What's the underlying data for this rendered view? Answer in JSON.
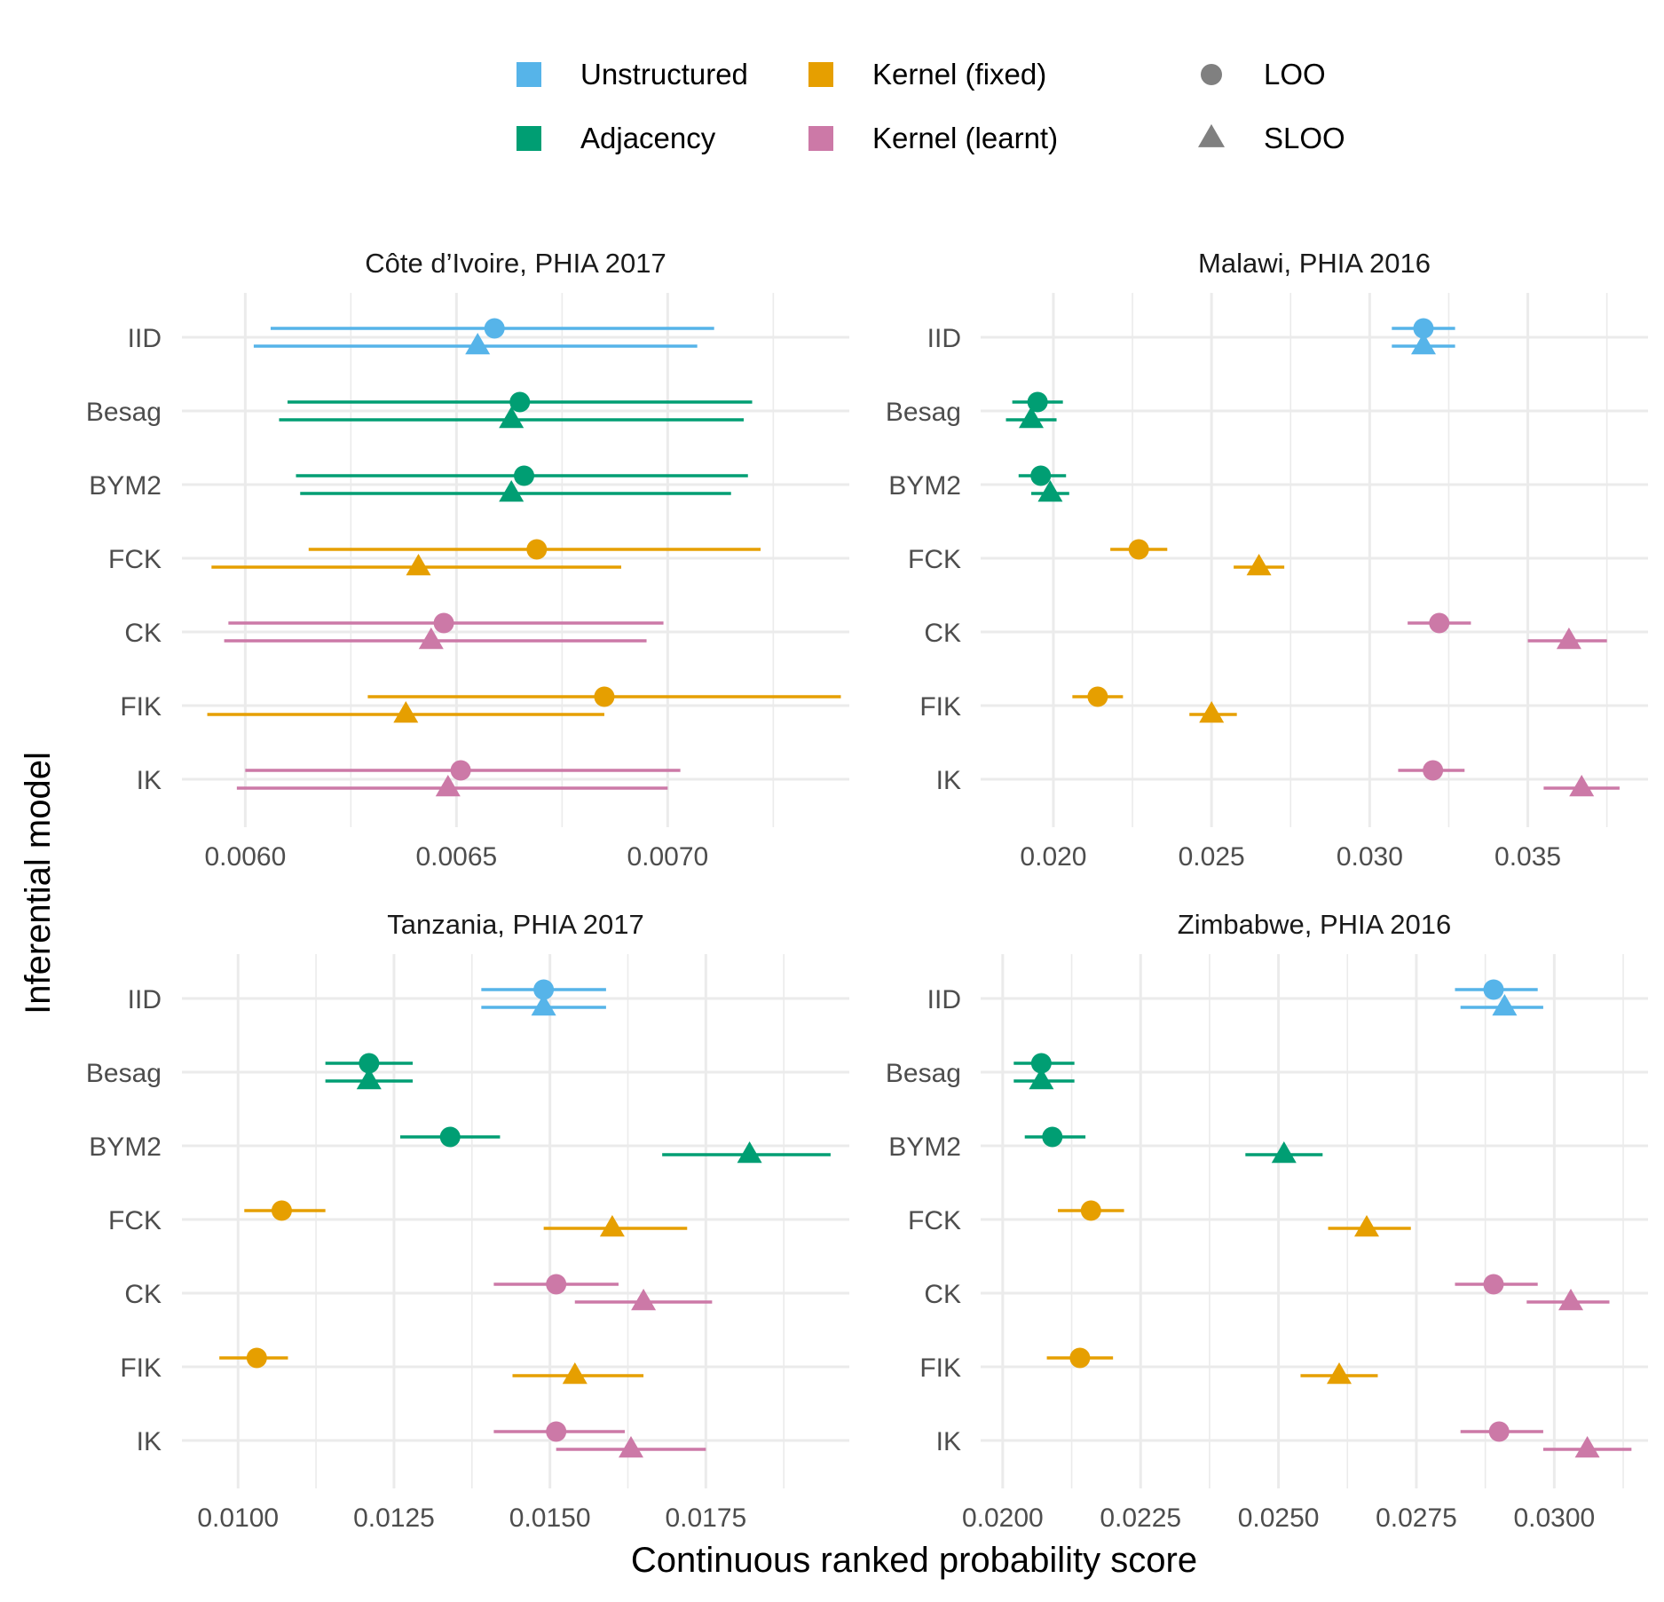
{
  "legend": {
    "colour_items": [
      {
        "label": "Unstructured",
        "color": "#56B4E9"
      },
      {
        "label": "Adjacency",
        "color": "#009E73"
      },
      {
        "label": "Kernel (fixed)",
        "color": "#E69F00"
      },
      {
        "label": "Kernel (learnt)",
        "color": "#CC79A7"
      }
    ],
    "shape_items": [
      {
        "label": "LOO",
        "shape": "circle"
      },
      {
        "label": "SLOO",
        "shape": "triangle"
      }
    ],
    "shape_color": "#808080"
  },
  "xlabel": "Continuous ranked probability score",
  "ylabel": "Inferential model",
  "chart_data": [
    {
      "type": "scatter",
      "title": "Côte d’Ivoire, PHIA 2017",
      "models": [
        "IID",
        "Besag",
        "BYM2",
        "FCK",
        "CK",
        "FIK",
        "IK"
      ],
      "groups": [
        "Unstructured",
        "Adjacency",
        "Adjacency",
        "Kernel (fixed)",
        "Kernel (learnt)",
        "Kernel (fixed)",
        "Kernel (learnt)"
      ],
      "xlim": [
        0.00585,
        0.00743
      ],
      "major_ticks": [
        0.006,
        0.0065,
        0.007
      ],
      "tick_labels": [
        "0.0060",
        "0.0065",
        "0.0070"
      ],
      "minor_ticks": [
        0.00625,
        0.00675,
        0.00725
      ],
      "series": [
        {
          "name": "LOO",
          "values": [
            0.00659,
            0.00665,
            0.00666,
            0.00669,
            0.00647,
            0.00685,
            0.00651
          ],
          "lower": [
            0.00606,
            0.0061,
            0.00612,
            0.00615,
            0.00596,
            0.00629,
            0.006
          ],
          "upper": [
            0.00711,
            0.0072,
            0.00719,
            0.00722,
            0.00699,
            0.00741,
            0.00703
          ]
        },
        {
          "name": "SLOO",
          "values": [
            0.00655,
            0.00663,
            0.00663,
            0.00641,
            0.00644,
            0.00638,
            0.00648
          ],
          "lower": [
            0.00602,
            0.00608,
            0.00613,
            0.00592,
            0.00595,
            0.00591,
            0.00598
          ],
          "upper": [
            0.00707,
            0.00718,
            0.00715,
            0.00689,
            0.00695,
            0.00685,
            0.007
          ]
        }
      ]
    },
    {
      "type": "scatter",
      "title": "Malawi, PHIA 2016",
      "models": [
        "IID",
        "Besag",
        "BYM2",
        "FCK",
        "CK",
        "FIK",
        "IK"
      ],
      "groups": [
        "Unstructured",
        "Adjacency",
        "Adjacency",
        "Kernel (fixed)",
        "Kernel (learnt)",
        "Kernel (fixed)",
        "Kernel (learnt)"
      ],
      "xlim": [
        0.0177,
        0.0388
      ],
      "major_ticks": [
        0.02,
        0.025,
        0.03,
        0.035
      ],
      "tick_labels": [
        "0.020",
        "0.025",
        "0.030",
        "0.035"
      ],
      "minor_ticks": [
        0.0225,
        0.0275,
        0.0325,
        0.0375
      ],
      "series": [
        {
          "name": "LOO",
          "values": [
            0.0317,
            0.0195,
            0.0196,
            0.0227,
            0.0322,
            0.0214,
            0.032
          ],
          "lower": [
            0.0307,
            0.0187,
            0.0189,
            0.0218,
            0.0312,
            0.0206,
            0.0309
          ],
          "upper": [
            0.0327,
            0.0203,
            0.0204,
            0.0236,
            0.0332,
            0.0222,
            0.033
          ]
        },
        {
          "name": "SLOO",
          "values": [
            0.0317,
            0.0193,
            0.0199,
            0.0265,
            0.0363,
            0.025,
            0.0367
          ],
          "lower": [
            0.0307,
            0.0185,
            0.0193,
            0.0257,
            0.035,
            0.0243,
            0.0355
          ],
          "upper": [
            0.0327,
            0.0201,
            0.0205,
            0.0273,
            0.0375,
            0.0258,
            0.0379
          ]
        }
      ]
    },
    {
      "type": "scatter",
      "title": "Tanzania, PHIA 2017",
      "models": [
        "IID",
        "Besag",
        "BYM2",
        "FCK",
        "CK",
        "FIK",
        "IK"
      ],
      "groups": [
        "Unstructured",
        "Adjacency",
        "Adjacency",
        "Kernel (fixed)",
        "Kernel (learnt)",
        "Kernel (fixed)",
        "Kernel (learnt)"
      ],
      "xlim": [
        0.0091,
        0.0198
      ],
      "major_ticks": [
        0.01,
        0.0125,
        0.015,
        0.0175
      ],
      "tick_labels": [
        "0.0100",
        "0.0125",
        "0.0150",
        "0.0175"
      ],
      "minor_ticks": [
        0.01125,
        0.01375,
        0.01625,
        0.01875
      ],
      "series": [
        {
          "name": "LOO",
          "values": [
            0.0149,
            0.0121,
            0.0134,
            0.0107,
            0.0151,
            0.0103,
            0.0151
          ],
          "lower": [
            0.0139,
            0.0114,
            0.0126,
            0.0101,
            0.0141,
            0.0097,
            0.0141
          ],
          "upper": [
            0.0159,
            0.0128,
            0.0142,
            0.0114,
            0.0161,
            0.0108,
            0.0162
          ]
        },
        {
          "name": "SLOO",
          "values": [
            0.0149,
            0.0121,
            0.0182,
            0.016,
            0.0165,
            0.0154,
            0.0163
          ],
          "lower": [
            0.0139,
            0.0114,
            0.0168,
            0.0149,
            0.0154,
            0.0144,
            0.0151
          ],
          "upper": [
            0.0159,
            0.0128,
            0.0195,
            0.0172,
            0.0176,
            0.0165,
            0.0175
          ]
        }
      ]
    },
    {
      "type": "scatter",
      "title": "Zimbabwe, PHIA 2016",
      "models": [
        "IID",
        "Besag",
        "BYM2",
        "FCK",
        "CK",
        "FIK",
        "IK"
      ],
      "groups": [
        "Unstructured",
        "Adjacency",
        "Adjacency",
        "Kernel (fixed)",
        "Kernel (learnt)",
        "Kernel (fixed)",
        "Kernel (learnt)"
      ],
      "xlim": [
        0.0196,
        0.0317
      ],
      "major_ticks": [
        0.02,
        0.0225,
        0.025,
        0.0275,
        0.03
      ],
      "tick_labels": [
        "0.0200",
        "0.0225",
        "0.0250",
        "0.0275",
        "0.0300"
      ],
      "minor_ticks": [
        0.02125,
        0.02375,
        0.02625,
        0.02875,
        0.03125
      ],
      "series": [
        {
          "name": "LOO",
          "values": [
            0.0289,
            0.0207,
            0.0209,
            0.0216,
            0.0289,
            0.0214,
            0.029
          ],
          "lower": [
            0.0282,
            0.0202,
            0.0204,
            0.021,
            0.0282,
            0.0208,
            0.0283
          ],
          "upper": [
            0.0297,
            0.0213,
            0.0215,
            0.0222,
            0.0297,
            0.022,
            0.0298
          ]
        },
        {
          "name": "SLOO",
          "values": [
            0.0291,
            0.0207,
            0.0251,
            0.0266,
            0.0303,
            0.0261,
            0.0306
          ],
          "lower": [
            0.0283,
            0.0202,
            0.0244,
            0.0259,
            0.0295,
            0.0254,
            0.0298
          ],
          "upper": [
            0.0298,
            0.0213,
            0.0258,
            0.0274,
            0.031,
            0.0268,
            0.0314
          ]
        }
      ]
    }
  ]
}
